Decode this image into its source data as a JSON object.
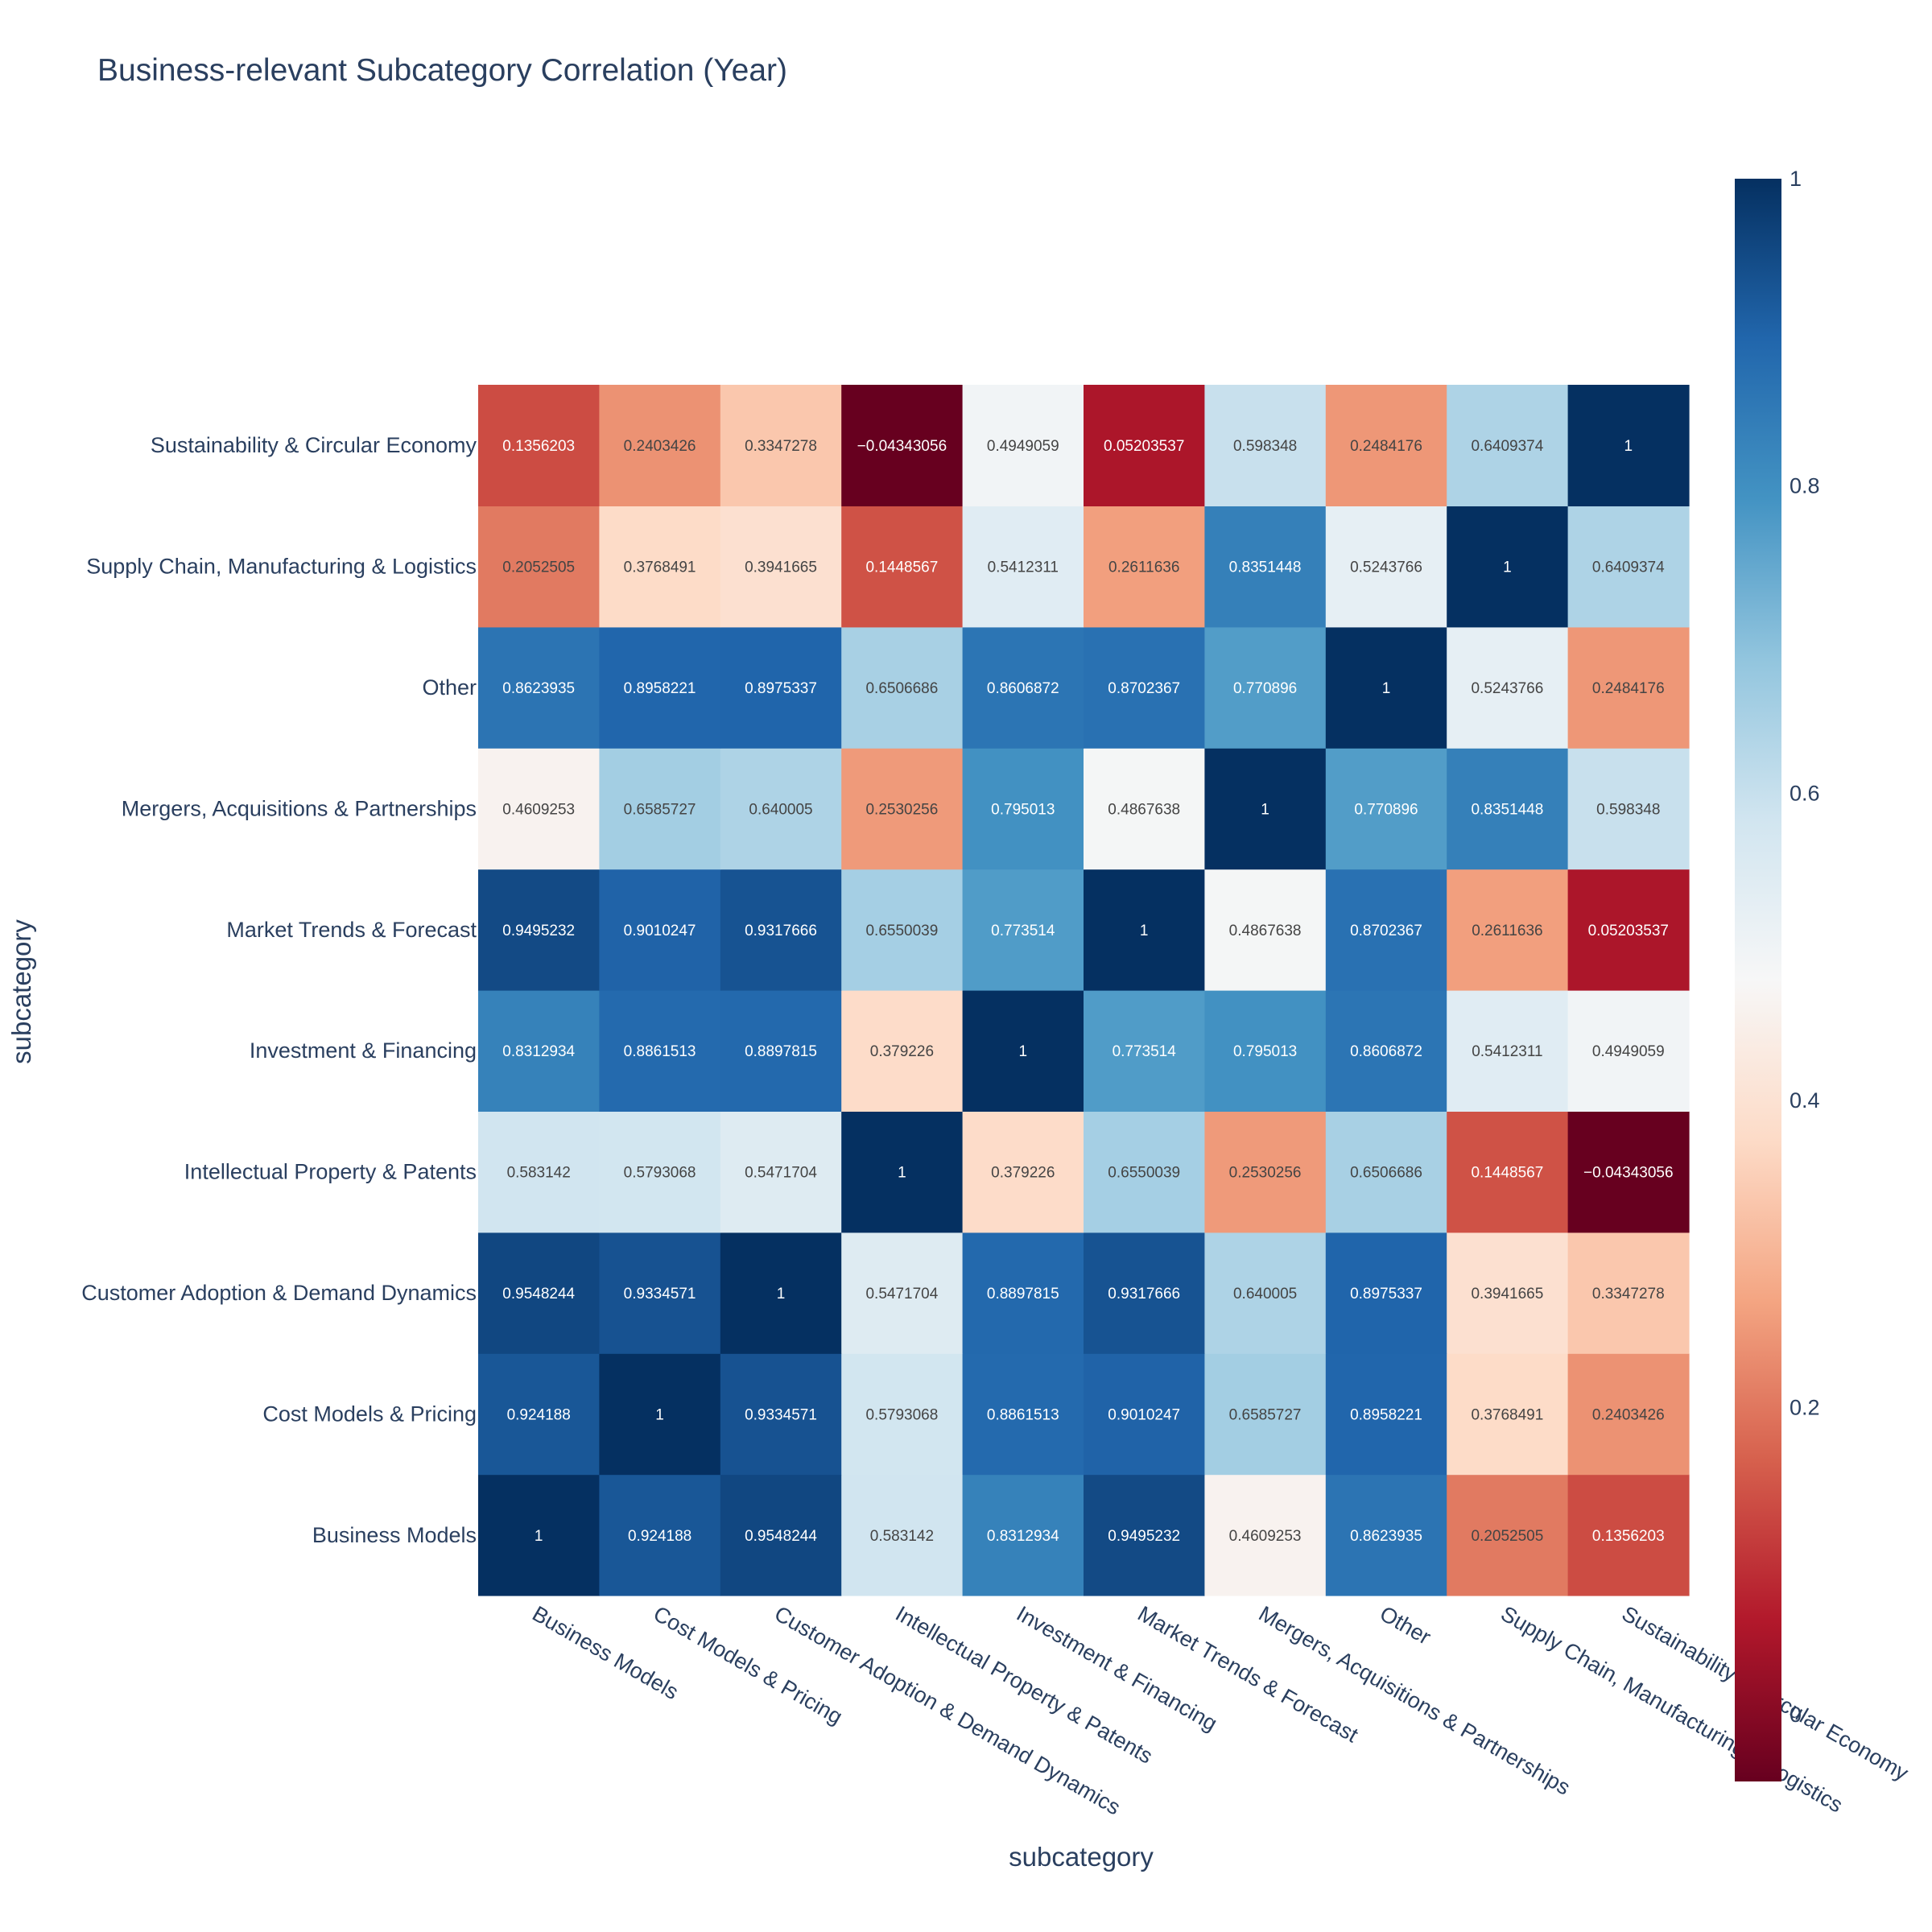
{
  "chart_data": {
    "type": "heatmap",
    "title": "Business-relevant Subcategory Correlation (Year)",
    "xlabel": "subcategory",
    "ylabel": "subcategory",
    "categories": [
      "Business Models",
      "Cost Models & Pricing",
      "Customer Adoption & Demand Dynamics",
      "Intellectual Property & Patents",
      "Investment & Financing",
      "Market Trends & Forecast",
      "Mergers, Acquisitions & Partnerships",
      "Other",
      "Supply Chain, Manufacturing & Logistics",
      "Sustainability & Circular Economy"
    ],
    "matrix": [
      [
        1,
        0.924188,
        0.9548244,
        0.583142,
        0.8312934,
        0.9495232,
        0.4609253,
        0.8623935,
        0.2052505,
        0.1356203
      ],
      [
        0.924188,
        1,
        0.9334571,
        0.5793068,
        0.8861513,
        0.9010247,
        0.6585727,
        0.8958221,
        0.3768491,
        0.2403426
      ],
      [
        0.9548244,
        0.9334571,
        1,
        0.5471704,
        0.8897815,
        0.9317666,
        0.640005,
        0.8975337,
        0.3941665,
        0.3347278
      ],
      [
        0.583142,
        0.5793068,
        0.5471704,
        1,
        0.379226,
        0.6550039,
        0.2530256,
        0.6506686,
        0.1448567,
        -0.04343056
      ],
      [
        0.8312934,
        0.8861513,
        0.8897815,
        0.379226,
        1,
        0.773514,
        0.795013,
        0.8606872,
        0.5412311,
        0.4949059
      ],
      [
        0.9495232,
        0.9010247,
        0.9317666,
        0.6550039,
        0.773514,
        1,
        0.4867638,
        0.8702367,
        0.2611636,
        0.05203537
      ],
      [
        0.4609253,
        0.6585727,
        0.640005,
        0.2530256,
        0.795013,
        0.4867638,
        1,
        0.770896,
        0.8351448,
        0.598348
      ],
      [
        0.8623935,
        0.8958221,
        0.8975337,
        0.6506686,
        0.8606872,
        0.8702367,
        0.770896,
        1,
        0.5243766,
        0.2484176
      ],
      [
        0.2052505,
        0.3768491,
        0.3941665,
        0.1448567,
        0.5412311,
        0.2611636,
        0.8351448,
        0.5243766,
        1,
        0.6409374
      ],
      [
        0.1356203,
        0.2403426,
        0.3347278,
        -0.04343056,
        0.4949059,
        0.05203537,
        0.598348,
        0.2484176,
        0.6409374,
        1
      ]
    ],
    "zlim": [
      -0.04343056,
      1
    ],
    "colorscale": [
      "#67001f",
      "#b2182b",
      "#d6604d",
      "#f4a582",
      "#fddbc7",
      "#f7f7f7",
      "#d1e5f0",
      "#92c5de",
      "#4393c3",
      "#2166ac",
      "#053061"
    ],
    "colorbar_ticks": [
      0,
      0.2,
      0.4,
      0.6,
      0.8,
      1
    ],
    "colorbar_tick_labels": [
      "0",
      "0.2",
      "0.4",
      "0.6",
      "0.8",
      "1"
    ]
  }
}
